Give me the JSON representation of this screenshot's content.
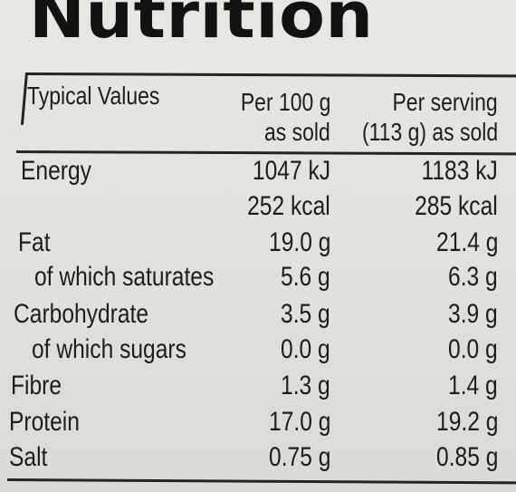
{
  "title": "Nutrition",
  "header": {
    "label": "Typical Values",
    "col1_line1": "Per 100 g",
    "col1_line2": "as sold",
    "col2_line1": "Per serving",
    "col2_line2": "(113 g) as sold"
  },
  "rows": [
    {
      "label": "Energy",
      "per100": "1047 kJ",
      "serving": "1183 kJ"
    },
    {
      "label": "",
      "per100": "252 kcal",
      "serving": "285 kcal"
    },
    {
      "label": "Fat",
      "per100": "19.0 g",
      "serving": "21.4 g"
    },
    {
      "label": "of which saturates",
      "per100": "5.6 g",
      "serving": "6.3 g"
    },
    {
      "label": "Carbohydrate",
      "per100": "3.5 g",
      "serving": "3.9 g"
    },
    {
      "label": "of which sugars",
      "per100": "0.0 g",
      "serving": "0.0 g"
    },
    {
      "label": "Fibre",
      "per100": "1.3 g",
      "serving": "1.4 g"
    },
    {
      "label": "Protein",
      "per100": "17.0 g",
      "serving": "19.2 g"
    },
    {
      "label": "Salt",
      "per100": "0.75 g",
      "serving": "0.85 g"
    }
  ]
}
